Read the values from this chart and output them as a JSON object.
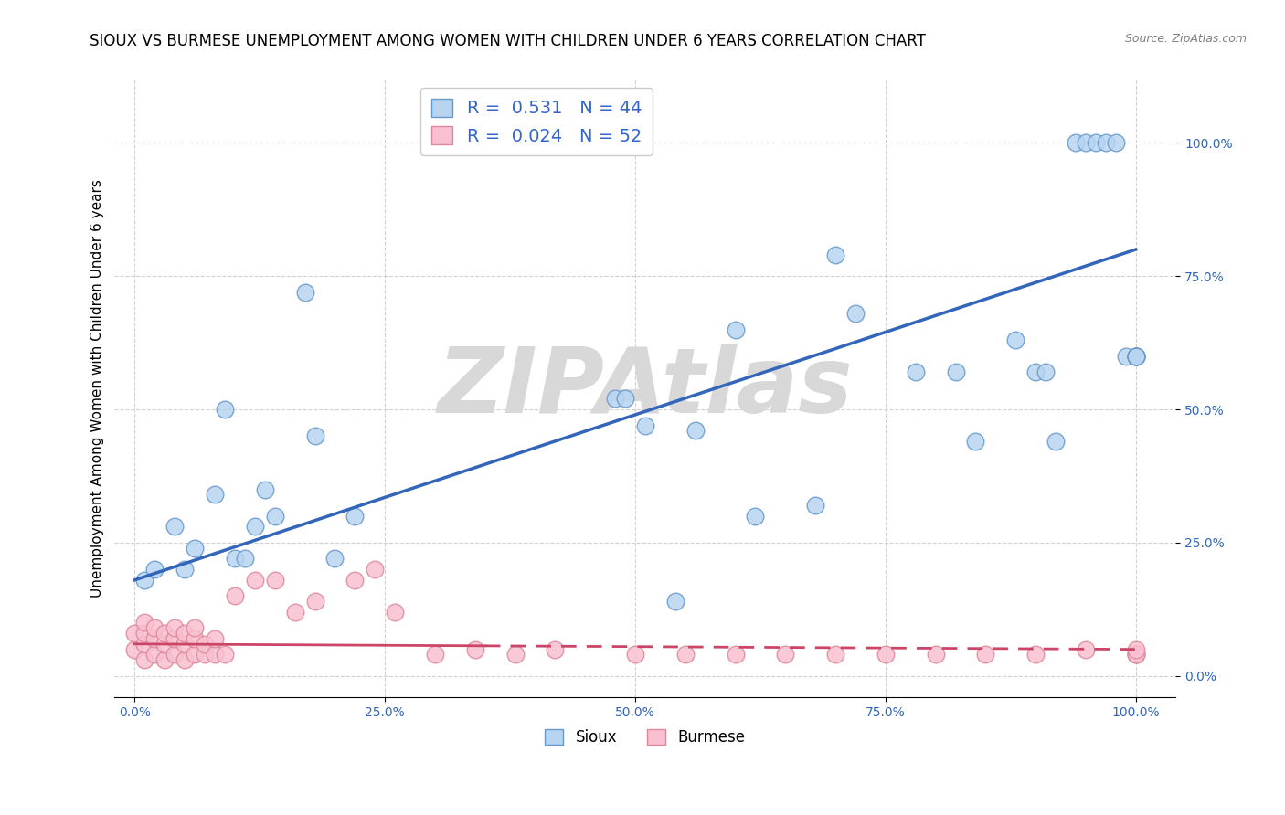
{
  "title": "SIOUX VS BURMESE UNEMPLOYMENT AMONG WOMEN WITH CHILDREN UNDER 6 YEARS CORRELATION CHART",
  "source": "Source: ZipAtlas.com",
  "ylabel": "Unemployment Among Women with Children Under 6 years",
  "xlim": [
    -0.02,
    1.04
  ],
  "ylim": [
    -0.04,
    1.12
  ],
  "xticks": [
    0,
    0.25,
    0.5,
    0.75,
    1.0
  ],
  "yticks": [
    0,
    0.25,
    0.5,
    0.75,
    1.0
  ],
  "xtick_labels": [
    "0.0%",
    "25.0%",
    "50.0%",
    "75.0%",
    "100.0%"
  ],
  "ytick_labels": [
    "0.0%",
    "25.0%",
    "50.0%",
    "75.0%",
    "100.0%"
  ],
  "sioux_R": 0.531,
  "sioux_N": 44,
  "burmese_R": 0.024,
  "burmese_N": 52,
  "sioux_color": "#b8d4f0",
  "sioux_edge_color": "#6699cc",
  "burmese_color": "#f8c0d0",
  "burmese_edge_color": "#dd8899",
  "trend_sioux_color": "#3366bb",
  "trend_burmese_color": "#cc4466",
  "watermark": "ZIPAtlas",
  "watermark_color": "#d8d8d8",
  "background_color": "#ffffff",
  "grid_color": "#cccccc",
  "title_fontsize": 12,
  "axis_label_fontsize": 11,
  "tick_fontsize": 10,
  "legend_fontsize": 14,
  "sioux_x": [
    0.01,
    0.02,
    0.04,
    0.05,
    0.06,
    0.08,
    0.09,
    0.1,
    0.11,
    0.12,
    0.13,
    0.14,
    0.17,
    0.18,
    0.2,
    0.22,
    0.48,
    0.49,
    0.51,
    0.54,
    0.56,
    0.6,
    0.62,
    0.68,
    0.7,
    0.72,
    0.78,
    0.82,
    0.84,
    0.88,
    0.9,
    0.91,
    0.92,
    0.94,
    0.95,
    0.96,
    0.97,
    0.98,
    0.99,
    1.0,
    1.0,
    1.0,
    1.0,
    1.0
  ],
  "sioux_y": [
    0.18,
    0.2,
    0.28,
    0.2,
    0.24,
    0.34,
    0.5,
    0.22,
    0.22,
    0.28,
    0.35,
    0.3,
    0.72,
    0.45,
    0.22,
    0.3,
    0.52,
    0.52,
    0.47,
    0.14,
    0.46,
    0.65,
    0.3,
    0.32,
    0.79,
    0.68,
    0.57,
    0.57,
    0.44,
    0.63,
    0.57,
    0.57,
    0.44,
    1.0,
    1.0,
    1.0,
    1.0,
    1.0,
    0.6,
    0.6,
    0.6,
    0.6,
    0.6,
    0.6
  ],
  "burmese_x": [
    0.0,
    0.0,
    0.01,
    0.01,
    0.01,
    0.01,
    0.02,
    0.02,
    0.02,
    0.03,
    0.03,
    0.03,
    0.04,
    0.04,
    0.04,
    0.05,
    0.05,
    0.05,
    0.06,
    0.06,
    0.06,
    0.07,
    0.07,
    0.08,
    0.08,
    0.09,
    0.1,
    0.12,
    0.14,
    0.16,
    0.18,
    0.22,
    0.24,
    0.26,
    0.3,
    0.34,
    0.38,
    0.42,
    0.5,
    0.55,
    0.6,
    0.65,
    0.7,
    0.75,
    0.8,
    0.85,
    0.9,
    0.95,
    1.0,
    1.0,
    1.0,
    1.0
  ],
  "burmese_y": [
    0.05,
    0.08,
    0.03,
    0.06,
    0.08,
    0.1,
    0.04,
    0.07,
    0.09,
    0.03,
    0.06,
    0.08,
    0.04,
    0.07,
    0.09,
    0.03,
    0.06,
    0.08,
    0.04,
    0.07,
    0.09,
    0.04,
    0.06,
    0.04,
    0.07,
    0.04,
    0.15,
    0.18,
    0.18,
    0.12,
    0.14,
    0.18,
    0.2,
    0.12,
    0.04,
    0.05,
    0.04,
    0.05,
    0.04,
    0.04,
    0.04,
    0.04,
    0.04,
    0.04,
    0.04,
    0.04,
    0.04,
    0.05,
    0.04,
    0.04,
    0.04,
    0.05
  ],
  "sioux_trend_x0": 0.0,
  "sioux_trend_x1": 1.0,
  "sioux_trend_y0": 0.18,
  "sioux_trend_y1": 0.8,
  "burmese_trend_solid_x0": 0.0,
  "burmese_trend_solid_x1": 0.35,
  "burmese_trend_dash_x0": 0.35,
  "burmese_trend_dash_x1": 1.0,
  "burmese_trend_y0": 0.06,
  "burmese_trend_y1": 0.05
}
